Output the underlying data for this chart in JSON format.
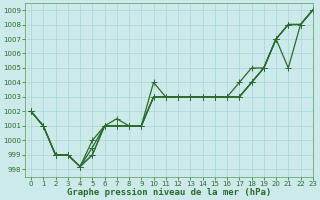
{
  "xlabel": "Graphe pression niveau de la mer (hPa)",
  "xlim": [
    -0.5,
    23
  ],
  "ylim": [
    997.5,
    1009.5
  ],
  "yticks": [
    998,
    999,
    1000,
    1001,
    1002,
    1003,
    1004,
    1005,
    1006,
    1007,
    1008,
    1009
  ],
  "xticks": [
    0,
    1,
    2,
    3,
    4,
    5,
    6,
    7,
    8,
    9,
    10,
    11,
    12,
    13,
    14,
    15,
    16,
    17,
    18,
    19,
    20,
    21,
    22,
    23
  ],
  "bg_color": "#cceaea",
  "grid_color": "#aad4d4",
  "line_color": "#2d6a2d",
  "line1": [
    1002,
    1001,
    999,
    999,
    998.2,
    999,
    1001,
    1001.5,
    1001,
    1001,
    1004,
    1003,
    1003,
    1003,
    1003,
    1003,
    1003,
    1003,
    1004,
    1005,
    1007,
    1008,
    1008,
    1009
  ],
  "line2": [
    1002,
    1001,
    999,
    999,
    998.2,
    999.5,
    1001,
    1001,
    1001,
    1001,
    1003,
    1003,
    1003,
    1003,
    1003,
    1003,
    1003,
    1003,
    1004,
    1005,
    1007,
    1005,
    1008,
    1009
  ],
  "line3": [
    1002,
    1001,
    999,
    999,
    998.2,
    1000,
    1001,
    1001,
    1001,
    1001,
    1003,
    1003,
    1003,
    1003,
    1003,
    1003,
    1003,
    1004,
    1005,
    1005,
    1007,
    1008,
    1008,
    1009
  ],
  "line4": [
    1002,
    1001,
    999,
    999,
    998.2,
    999,
    1001,
    1001,
    1001,
    1001,
    1003,
    1003,
    1003,
    1003,
    1003,
    1003,
    1003,
    1003,
    1004,
    1005,
    1007,
    1008,
    1008,
    1009
  ],
  "marker_size": 2.2,
  "line_width": 0.9,
  "tick_fontsize": 5.0,
  "xlabel_fontsize": 6.5,
  "tick_color": "#2d6a2d",
  "spine_color": "#5a9a5a"
}
